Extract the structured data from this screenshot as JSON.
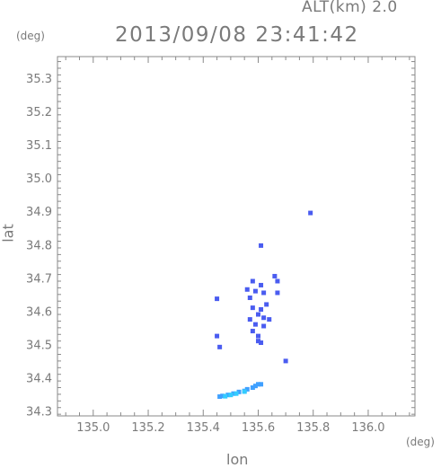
{
  "header": {
    "altitude_label": "ALT(km) 2.0",
    "timestamp": "2013/09/08 23:41:42"
  },
  "chart_data": {
    "type": "scatter",
    "title": "2013/09/08 23:41:42",
    "xlabel": "lon",
    "ylabel": "lat",
    "x_unit": "(deg)",
    "y_unit": "(deg)",
    "xlim": [
      134.87,
      136.17
    ],
    "ylim": [
      34.285,
      35.365
    ],
    "x_ticks": [
      "135.0",
      "135.2",
      "135.4",
      "135.6",
      "135.8",
      "136.0"
    ],
    "x_tick_values": [
      135.0,
      135.2,
      135.4,
      135.6,
      135.8,
      136.0
    ],
    "y_ticks": [
      "34.3",
      "34.4",
      "34.5",
      "34.6",
      "34.7",
      "34.8",
      "34.9",
      "35.0",
      "35.1",
      "35.2",
      "35.3"
    ],
    "y_tick_values": [
      34.3,
      34.4,
      34.5,
      34.6,
      34.7,
      34.8,
      34.9,
      35.0,
      35.1,
      35.2,
      35.3
    ],
    "grid": false,
    "colors": {
      "echo_blue": "#4a5cf0",
      "echo_light": "#3fa0ff",
      "echo_cyan": "#33ccff"
    },
    "series": [
      {
        "points": [
          [
            135.79,
            34.895
          ],
          [
            135.61,
            34.797
          ],
          [
            135.66,
            34.705
          ],
          [
            135.67,
            34.69
          ],
          [
            135.58,
            34.69
          ],
          [
            135.61,
            34.678
          ],
          [
            135.56,
            34.665
          ],
          [
            135.59,
            34.66
          ],
          [
            135.62,
            34.655
          ],
          [
            135.67,
            34.655
          ],
          [
            135.57,
            34.64
          ],
          [
            135.45,
            34.637
          ],
          [
            135.63,
            34.62
          ],
          [
            135.58,
            34.61
          ],
          [
            135.61,
            34.605
          ],
          [
            135.6,
            34.59
          ],
          [
            135.62,
            34.58
          ],
          [
            135.57,
            34.575
          ],
          [
            135.64,
            34.575
          ],
          [
            135.59,
            34.56
          ],
          [
            135.62,
            34.555
          ],
          [
            135.58,
            34.54
          ],
          [
            135.6,
            34.525
          ],
          [
            135.6,
            34.51
          ],
          [
            135.61,
            34.505
          ],
          [
            135.45,
            34.525
          ],
          [
            135.46,
            34.492
          ],
          [
            135.7,
            34.45
          ]
        ],
        "color": "#4a5cf0"
      },
      {
        "points": [
          [
            135.61,
            34.38
          ],
          [
            135.6,
            34.38
          ],
          [
            135.59,
            34.375
          ],
          [
            135.58,
            34.37
          ],
          [
            135.56,
            34.365
          ],
          [
            135.55,
            34.36
          ],
          [
            135.53,
            34.357
          ],
          [
            135.51,
            34.352
          ],
          [
            135.49,
            34.348
          ],
          [
            135.47,
            34.345
          ],
          [
            135.46,
            34.343
          ]
        ],
        "color": "#3fa0ff"
      },
      {
        "points": [
          [
            135.52,
            34.352
          ],
          [
            135.5,
            34.348
          ],
          [
            135.48,
            34.344
          ],
          [
            135.55,
            34.358
          ]
        ],
        "color": "#33ccff"
      }
    ]
  }
}
